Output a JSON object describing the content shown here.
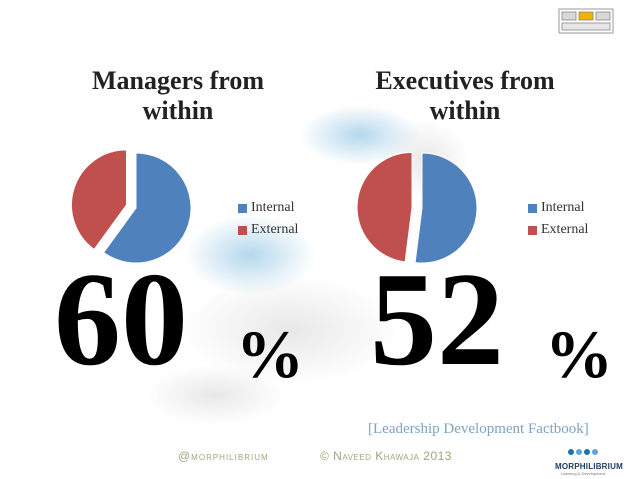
{
  "chart_data": [
    {
      "type": "pie",
      "title": "Managers from within",
      "categories": [
        "Internal",
        "External"
      ],
      "values": [
        60,
        40
      ],
      "colors": [
        "#4f81bd",
        "#c0504d"
      ],
      "exploded": "External",
      "legend": "right"
    },
    {
      "type": "pie",
      "title": "Executives from within",
      "categories": [
        "Internal",
        "External"
      ],
      "values": [
        52,
        48
      ],
      "colors": [
        "#4f81bd",
        "#c0504d"
      ],
      "exploded": "External",
      "legend": "right"
    }
  ],
  "highlights": {
    "left_value": "60",
    "right_value": "52",
    "percent_sign": "%"
  },
  "source": "[Leadership Development Factbook]",
  "footer": {
    "handle": "@morphilibrium",
    "copyright": "© Naveed Khawaja 2013"
  },
  "brand": {
    "name": "MORPHILIBRIUM",
    "tagline": "Learning & Development",
    "colors": [
      "#1f6fb2",
      "#f0b400",
      "#5aa7d6"
    ]
  }
}
